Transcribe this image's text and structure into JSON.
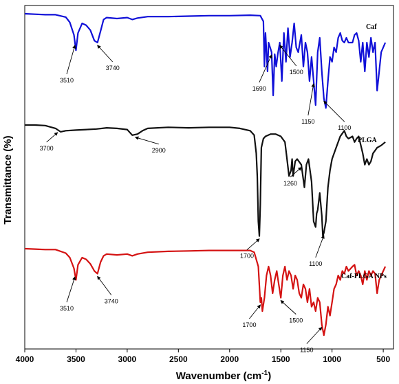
{
  "chart_data": {
    "type": "line",
    "xlabel": "Wavenumber (cm",
    "xlabel_sup": "-1",
    "xlabel_end": ")",
    "ylabel": "Transmittance (%)",
    "xlim": [
      4000,
      400
    ],
    "x_reversed": true,
    "x_ticks": [
      "4000",
      "3500",
      "3000",
      "2500",
      "2000",
      "1500",
      "1000",
      "500"
    ],
    "y_ticks": "none",
    "series": [
      {
        "name": "Caf",
        "color": "#1010d8",
        "baseline": 0.96,
        "points": [
          [
            4000,
            0.0
          ],
          [
            3900,
            0.005
          ],
          [
            3800,
            0.01
          ],
          [
            3700,
            0.01
          ],
          [
            3600,
            0.035
          ],
          [
            3560,
            0.09
          ],
          [
            3520,
            0.22
          ],
          [
            3500,
            0.38
          ],
          [
            3480,
            0.2
          ],
          [
            3440,
            0.1
          ],
          [
            3400,
            0.12
          ],
          [
            3360,
            0.17
          ],
          [
            3320,
            0.28
          ],
          [
            3290,
            0.3
          ],
          [
            3260,
            0.18
          ],
          [
            3230,
            0.06
          ],
          [
            3200,
            0.04
          ],
          [
            3100,
            0.05
          ],
          [
            3000,
            0.04
          ],
          [
            2950,
            0.06
          ],
          [
            2900,
            0.045
          ],
          [
            2800,
            0.03
          ],
          [
            2600,
            0.03
          ],
          [
            2400,
            0.025
          ],
          [
            2200,
            0.02
          ],
          [
            2000,
            0.02
          ],
          [
            1800,
            0.015
          ],
          [
            1700,
            0.02
          ],
          [
            1670,
            0.08
          ],
          [
            1660,
            0.55
          ],
          [
            1650,
            0.2
          ],
          [
            1630,
            0.6
          ],
          [
            1620,
            0.3
          ],
          [
            1590,
            0.4
          ],
          [
            1575,
            0.85
          ],
          [
            1560,
            0.42
          ],
          [
            1545,
            0.55
          ],
          [
            1530,
            0.42
          ],
          [
            1510,
            0.3
          ],
          [
            1490,
            0.7
          ],
          [
            1470,
            0.2
          ],
          [
            1450,
            0.5
          ],
          [
            1430,
            0.15
          ],
          [
            1410,
            0.45
          ],
          [
            1390,
            0.3
          ],
          [
            1370,
            0.1
          ],
          [
            1350,
            0.35
          ],
          [
            1330,
            0.4
          ],
          [
            1300,
            0.22
          ],
          [
            1280,
            0.55
          ],
          [
            1260,
            0.3
          ],
          [
            1240,
            0.4
          ],
          [
            1220,
            0.7
          ],
          [
            1200,
            0.45
          ],
          [
            1180,
            0.7
          ],
          [
            1160,
            0.95
          ],
          [
            1140,
            0.4
          ],
          [
            1120,
            0.25
          ],
          [
            1100,
            0.6
          ],
          [
            1080,
            0.88
          ],
          [
            1060,
            0.98
          ],
          [
            1040,
            0.7
          ],
          [
            1020,
            0.45
          ],
          [
            1000,
            0.5
          ],
          [
            980,
            0.35
          ],
          [
            960,
            0.4
          ],
          [
            940,
            0.25
          ],
          [
            920,
            0.2
          ],
          [
            900,
            0.28
          ],
          [
            880,
            0.3
          ],
          [
            860,
            0.25
          ],
          [
            840,
            0.3
          ],
          [
            800,
            0.3
          ],
          [
            780,
            0.22
          ],
          [
            760,
            0.2
          ],
          [
            740,
            0.28
          ],
          [
            720,
            0.5
          ],
          [
            700,
            0.3
          ],
          [
            680,
            0.6
          ],
          [
            660,
            0.3
          ],
          [
            640,
            0.45
          ],
          [
            620,
            0.25
          ],
          [
            600,
            0.4
          ],
          [
            580,
            0.3
          ],
          [
            560,
            0.8
          ],
          [
            540,
            0.6
          ],
          [
            520,
            0.4
          ],
          [
            500,
            0.35
          ],
          [
            480,
            0.3
          ]
        ]
      },
      {
        "name": "PLGA",
        "color": "#111111",
        "baseline": 1.65,
        "points": [
          [
            4000,
            0.0
          ],
          [
            3900,
            0.0
          ],
          [
            3800,
            0.005
          ],
          [
            3700,
            0.03
          ],
          [
            3650,
            0.06
          ],
          [
            3600,
            0.05
          ],
          [
            3500,
            0.045
          ],
          [
            3400,
            0.04
          ],
          [
            3300,
            0.035
          ],
          [
            3200,
            0.025
          ],
          [
            3100,
            0.03
          ],
          [
            3000,
            0.04
          ],
          [
            2950,
            0.09
          ],
          [
            2900,
            0.08
          ],
          [
            2850,
            0.05
          ],
          [
            2800,
            0.03
          ],
          [
            2600,
            0.02
          ],
          [
            2400,
            0.025
          ],
          [
            2200,
            0.02
          ],
          [
            2000,
            0.02
          ],
          [
            1900,
            0.03
          ],
          [
            1800,
            0.05
          ],
          [
            1760,
            0.09
          ],
          [
            1740,
            0.25
          ],
          [
            1730,
            0.45
          ],
          [
            1720,
            0.85
          ],
          [
            1710,
            0.98
          ],
          [
            1700,
            0.7
          ],
          [
            1690,
            0.2
          ],
          [
            1670,
            0.12
          ],
          [
            1650,
            0.1
          ],
          [
            1600,
            0.08
          ],
          [
            1550,
            0.08
          ],
          [
            1500,
            0.1
          ],
          [
            1460,
            0.15
          ],
          [
            1440,
            0.3
          ],
          [
            1420,
            0.45
          ],
          [
            1400,
            0.4
          ],
          [
            1390,
            0.3
          ],
          [
            1380,
            0.45
          ],
          [
            1360,
            0.32
          ],
          [
            1340,
            0.3
          ],
          [
            1300,
            0.35
          ],
          [
            1270,
            0.55
          ],
          [
            1250,
            0.35
          ],
          [
            1230,
            0.3
          ],
          [
            1200,
            0.5
          ],
          [
            1180,
            0.85
          ],
          [
            1160,
            0.9
          ],
          [
            1150,
            0.78
          ],
          [
            1140,
            0.75
          ],
          [
            1120,
            0.6
          ],
          [
            1100,
            0.8
          ],
          [
            1090,
            0.98
          ],
          [
            1080,
            0.95
          ],
          [
            1060,
            0.85
          ],
          [
            1040,
            0.55
          ],
          [
            1020,
            0.4
          ],
          [
            1000,
            0.3
          ],
          [
            960,
            0.2
          ],
          [
            920,
            0.1
          ],
          [
            880,
            0.05
          ],
          [
            860,
            0.1
          ],
          [
            840,
            0.12
          ],
          [
            800,
            0.1
          ],
          [
            780,
            0.15
          ],
          [
            760,
            0.12
          ],
          [
            740,
            0.1
          ],
          [
            700,
            0.25
          ],
          [
            680,
            0.35
          ],
          [
            660,
            0.3
          ],
          [
            640,
            0.35
          ],
          [
            620,
            0.32
          ],
          [
            600,
            0.25
          ],
          [
            560,
            0.2
          ],
          [
            520,
            0.18
          ],
          [
            480,
            0.15
          ]
        ]
      },
      {
        "name": "Caf-PLGA NPs",
        "color": "#d41212",
        "baseline": 1.0,
        "points": [
          [
            4000,
            0.0
          ],
          [
            3900,
            0.005
          ],
          [
            3800,
            0.01
          ],
          [
            3700,
            0.01
          ],
          [
            3600,
            0.05
          ],
          [
            3560,
            0.1
          ],
          [
            3520,
            0.22
          ],
          [
            3500,
            0.35
          ],
          [
            3480,
            0.18
          ],
          [
            3440,
            0.1
          ],
          [
            3400,
            0.12
          ],
          [
            3360,
            0.17
          ],
          [
            3320,
            0.25
          ],
          [
            3290,
            0.28
          ],
          [
            3260,
            0.15
          ],
          [
            3230,
            0.08
          ],
          [
            3200,
            0.06
          ],
          [
            3100,
            0.07
          ],
          [
            3000,
            0.06
          ],
          [
            2950,
            0.08
          ],
          [
            2900,
            0.06
          ],
          [
            2800,
            0.04
          ],
          [
            2600,
            0.03
          ],
          [
            2400,
            0.025
          ],
          [
            2200,
            0.02
          ],
          [
            2000,
            0.02
          ],
          [
            1800,
            0.02
          ],
          [
            1760,
            0.04
          ],
          [
            1720,
            0.2
          ],
          [
            1700,
            0.6
          ],
          [
            1690,
            0.55
          ],
          [
            1680,
            0.7
          ],
          [
            1660,
            0.55
          ],
          [
            1640,
            0.3
          ],
          [
            1620,
            0.2
          ],
          [
            1600,
            0.3
          ],
          [
            1580,
            0.5
          ],
          [
            1560,
            0.35
          ],
          [
            1540,
            0.25
          ],
          [
            1520,
            0.4
          ],
          [
            1500,
            0.55
          ],
          [
            1480,
            0.3
          ],
          [
            1460,
            0.2
          ],
          [
            1440,
            0.35
          ],
          [
            1420,
            0.25
          ],
          [
            1400,
            0.3
          ],
          [
            1380,
            0.45
          ],
          [
            1360,
            0.3
          ],
          [
            1340,
            0.35
          ],
          [
            1320,
            0.5
          ],
          [
            1300,
            0.55
          ],
          [
            1280,
            0.4
          ],
          [
            1260,
            0.45
          ],
          [
            1240,
            0.6
          ],
          [
            1220,
            0.45
          ],
          [
            1200,
            0.65
          ],
          [
            1180,
            0.6
          ],
          [
            1160,
            0.7
          ],
          [
            1140,
            0.55
          ],
          [
            1120,
            0.6
          ],
          [
            1100,
            0.85
          ],
          [
            1080,
            0.97
          ],
          [
            1060,
            0.85
          ],
          [
            1040,
            0.65
          ],
          [
            1020,
            0.75
          ],
          [
            1000,
            0.6
          ],
          [
            980,
            0.45
          ],
          [
            960,
            0.4
          ],
          [
            940,
            0.3
          ],
          [
            920,
            0.35
          ],
          [
            900,
            0.25
          ],
          [
            880,
            0.28
          ],
          [
            860,
            0.2
          ],
          [
            840,
            0.25
          ],
          [
            800,
            0.2
          ],
          [
            780,
            0.18
          ],
          [
            760,
            0.3
          ],
          [
            740,
            0.25
          ],
          [
            720,
            0.3
          ],
          [
            700,
            0.4
          ],
          [
            680,
            0.25
          ],
          [
            660,
            0.35
          ],
          [
            640,
            0.25
          ],
          [
            620,
            0.3
          ],
          [
            600,
            0.25
          ],
          [
            580,
            0.28
          ],
          [
            560,
            0.5
          ],
          [
            540,
            0.35
          ],
          [
            520,
            0.3
          ],
          [
            500,
            0.25
          ],
          [
            480,
            0.2
          ]
        ]
      }
    ],
    "annotations": [
      {
        "series": "Caf",
        "label": "3510",
        "x": 3510
      },
      {
        "series": "Caf",
        "label": "3740",
        "x": 3290
      },
      {
        "series": "Caf",
        "label": "1690",
        "x": 1590
      },
      {
        "series": "Caf",
        "label": "1500",
        "x": 1510
      },
      {
        "series": "Caf",
        "label": "1150",
        "x": 1180
      },
      {
        "series": "Caf",
        "label": "1100",
        "x": 1080
      },
      {
        "series": "PLGA",
        "label": "3700",
        "x": 3680
      },
      {
        "series": "PLGA",
        "label": "2900",
        "x": 2920
      },
      {
        "series": "PLGA",
        "label": "1700",
        "x": 1710
      },
      {
        "series": "PLGA",
        "label": "1260",
        "x": 1300
      },
      {
        "series": "PLGA",
        "label": "1100",
        "x": 1080
      },
      {
        "series": "Caf-PLGA NPs",
        "label": "3510",
        "x": 3510
      },
      {
        "series": "Caf-PLGA NPs",
        "label": "3740",
        "x": 3290
      },
      {
        "series": "Caf-PLGA NPs",
        "label": "1700",
        "x": 1700
      },
      {
        "series": "Caf-PLGA NPs",
        "label": "1500",
        "x": 1500
      },
      {
        "series": "Caf-PLGA NPs",
        "label": "1150",
        "x": 1100
      }
    ]
  }
}
